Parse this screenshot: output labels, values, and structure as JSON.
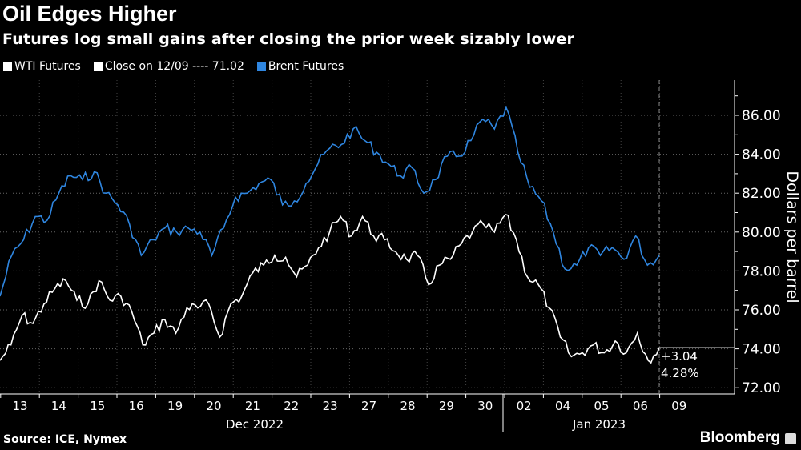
{
  "chart_data": {
    "type": "line",
    "title": "Oil Edges Higher",
    "subtitle": "Futures log small gains after closing the prior week sizably lower",
    "ylabel": "Dollars per barrel",
    "ylim": [
      71.7,
      87.7
    ],
    "yticks": [
      "72.00",
      "74.00",
      "76.00",
      "78.00",
      "80.00",
      "82.00",
      "84.00",
      "86.00"
    ],
    "x_tick_labels": [
      "13",
      "14",
      "15",
      "16",
      "19",
      "20",
      "21",
      "22",
      "23",
      "27",
      "28",
      "29",
      "30",
      "02",
      "04",
      "05",
      "06",
      "09"
    ],
    "x_group_labels": [
      "Dec 2022",
      "Jan 2023"
    ],
    "grid": true,
    "legend_position": "top-left",
    "legend": [
      {
        "label": "WTI Futures",
        "color": "#ffffff"
      },
      {
        "label": "Close on 12/09 ---- 71.02",
        "color": "#ffffff"
      },
      {
        "label": "Brent Futures",
        "color": "#2f86e0"
      }
    ],
    "reference_close": 71.02,
    "annotation": {
      "change": "+3.04",
      "percent": "4.28%"
    },
    "series": [
      {
        "name": "WTI Futures",
        "color": "#ffffff",
        "values": [
          73.4,
          74.2,
          75.7,
          75.3,
          76.3,
          77.1,
          77.5,
          76.5,
          76.3,
          77.5,
          76.5,
          76.7,
          75.9,
          74.2,
          74.8,
          75.5,
          74.8,
          76.1,
          76.1,
          76.3,
          74.6,
          76.3,
          76.7,
          77.9,
          78.3,
          78.8,
          78.7,
          77.7,
          78.3,
          79.2,
          80.0,
          80.8,
          79.8,
          80.8,
          79.8,
          79.6,
          79.0,
          78.6,
          78.8,
          77.3,
          78.3,
          78.6,
          79.4,
          80.0,
          80.4,
          80.0,
          80.9,
          79.6,
          77.7,
          77.3,
          76.1,
          74.6,
          73.6,
          73.8,
          74.2,
          73.8,
          74.4,
          73.8,
          74.8,
          73.4,
          74.06
        ]
      },
      {
        "name": "Brent Futures",
        "color": "#2f86e0",
        "values": [
          76.7,
          78.8,
          79.6,
          80.8,
          80.6,
          82.0,
          82.9,
          82.7,
          83.1,
          82.0,
          81.4,
          80.4,
          78.8,
          79.6,
          80.2,
          80.0,
          80.2,
          80.0,
          78.8,
          80.2,
          81.8,
          82.0,
          82.5,
          82.7,
          81.4,
          81.6,
          82.5,
          83.5,
          84.3,
          84.5,
          85.3,
          84.7,
          84.1,
          83.5,
          82.9,
          83.3,
          82.0,
          82.7,
          83.9,
          83.9,
          84.7,
          85.8,
          85.3,
          86.4,
          84.1,
          82.3,
          81.6,
          80.0,
          78.1,
          78.3,
          79.2,
          78.8,
          79.2,
          78.6,
          79.8,
          78.3,
          78.8
        ]
      }
    ]
  },
  "footer": {
    "source": "Source: ICE, Nymex",
    "brand": "Bloomberg"
  }
}
